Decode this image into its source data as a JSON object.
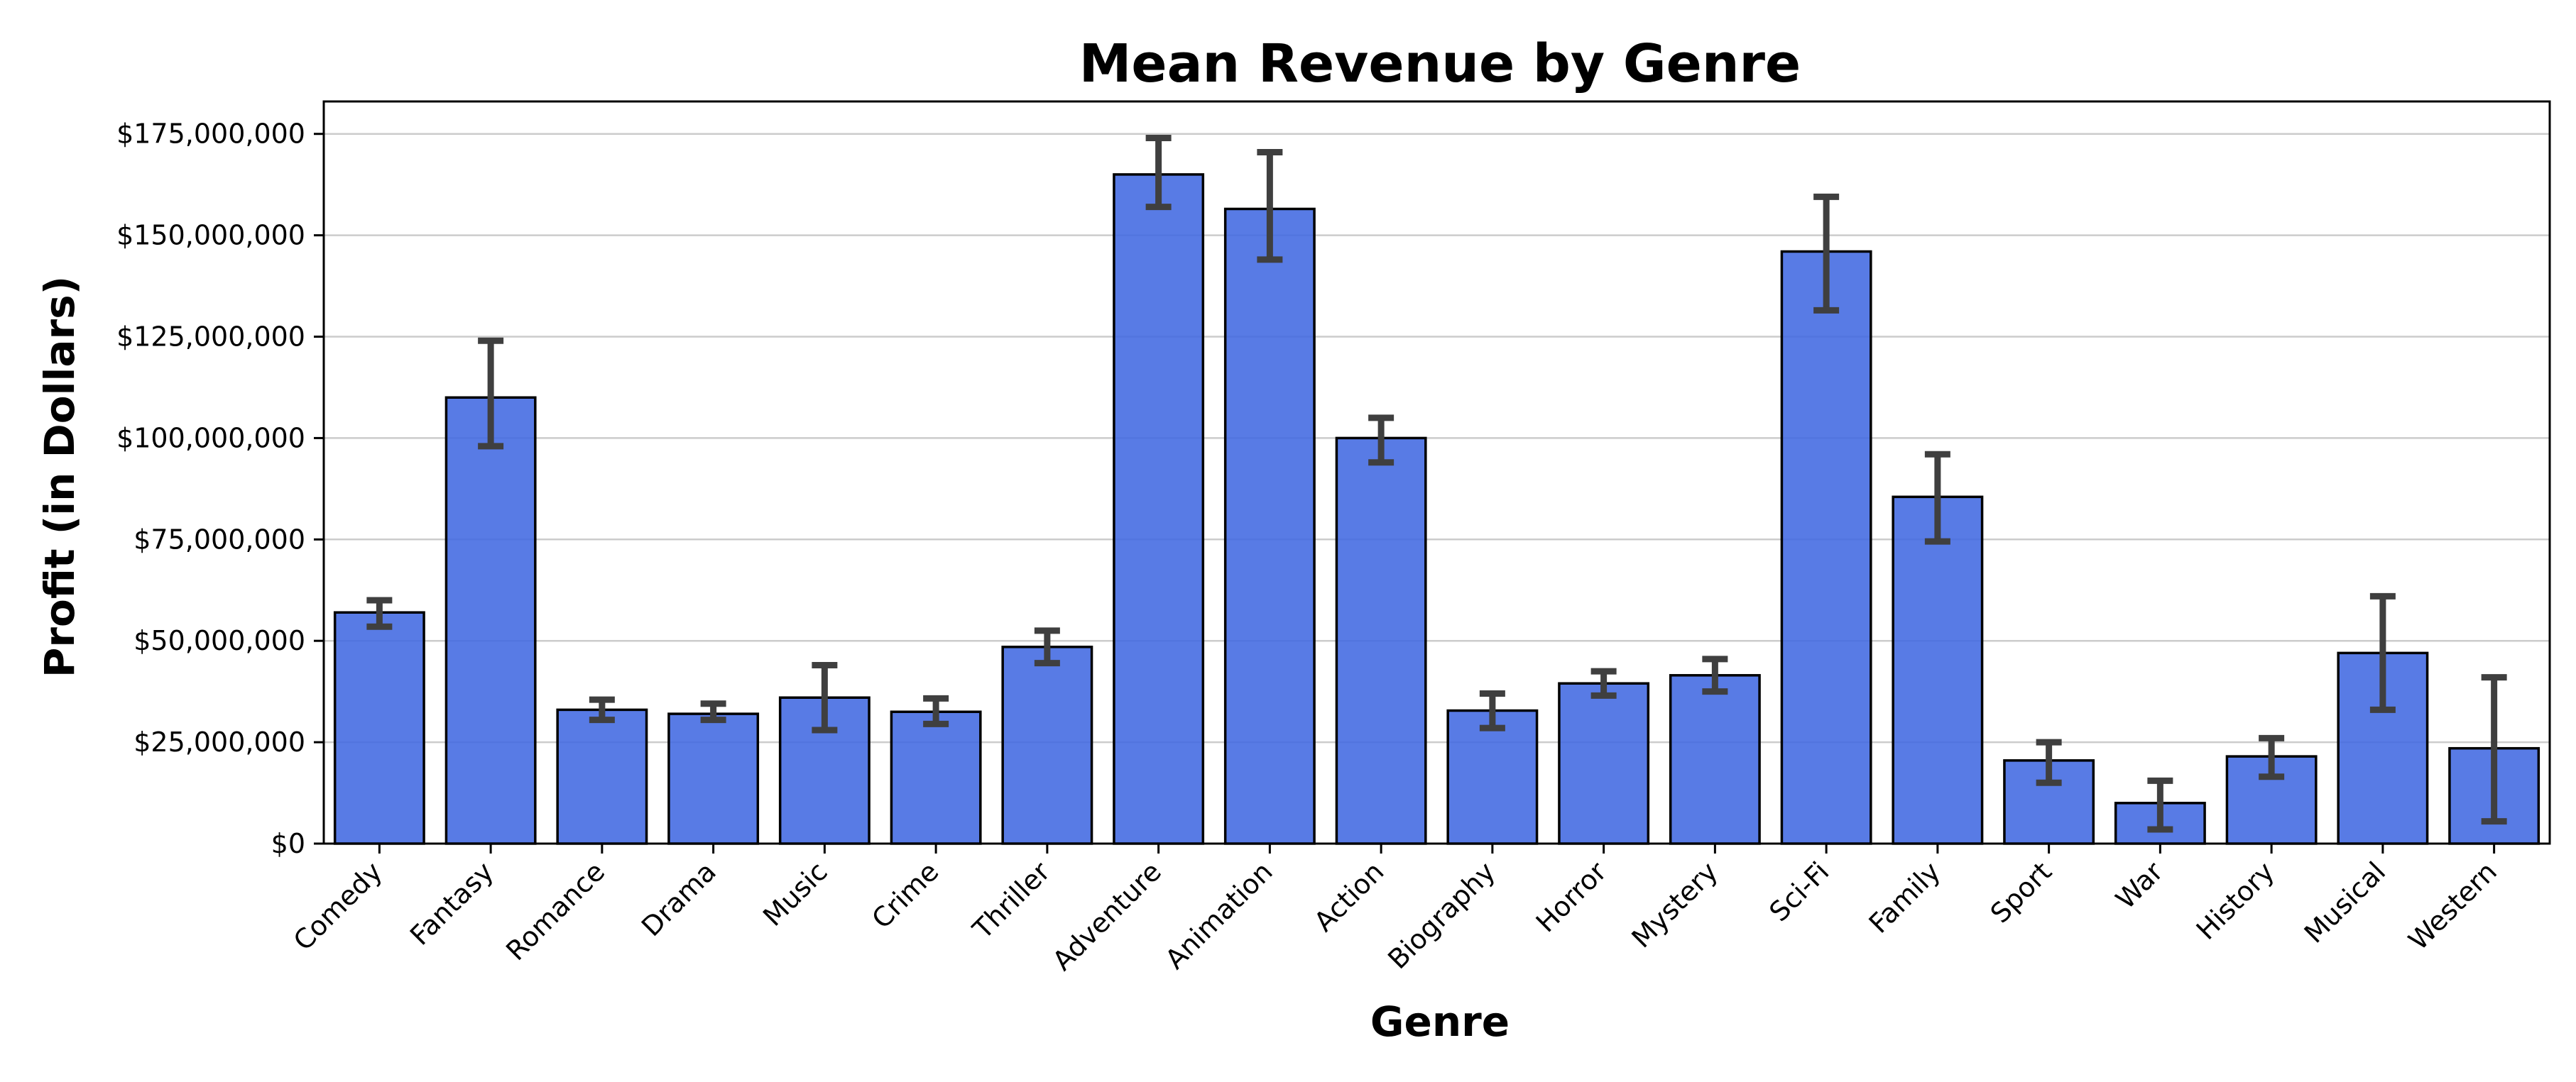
{
  "chart_data": {
    "type": "bar",
    "title": "Mean Revenue by Genre",
    "xlabel": "Genre",
    "ylabel": "Profit (in Dollars)",
    "categories": [
      "Comedy",
      "Fantasy",
      "Romance",
      "Drama",
      "Music",
      "Crime",
      "Thriller",
      "Adventure",
      "Animation",
      "Action",
      "Biography",
      "Horror",
      "Mystery",
      "Sci-Fi",
      "Family",
      "Sport",
      "War",
      "History",
      "Musical",
      "Western"
    ],
    "values": [
      57000000,
      110000000,
      33000000,
      32000000,
      36000000,
      32500000,
      48500000,
      165000000,
      156500000,
      100000000,
      32800000,
      39500000,
      41500000,
      146000000,
      85500000,
      20500000,
      10000000,
      21500000,
      47000000,
      23500000
    ],
    "error_low": [
      53500000,
      98000000,
      30500000,
      30500000,
      28000000,
      29500000,
      44500000,
      157000000,
      144000000,
      94000000,
      28500000,
      36500000,
      37500000,
      131500000,
      74500000,
      15000000,
      3500000,
      16500000,
      33000000,
      5500000
    ],
    "error_high": [
      60000000,
      124000000,
      35500000,
      34500000,
      44000000,
      35800000,
      52500000,
      174000000,
      170500000,
      105000000,
      37000000,
      42500000,
      45500000,
      159500000,
      96000000,
      25000000,
      15500000,
      26000000,
      61000000,
      41000000
    ],
    "ylim": [
      0,
      183000000
    ],
    "yticks": [
      0,
      25000000,
      50000000,
      75000000,
      100000000,
      125000000,
      150000000,
      175000000
    ],
    "ytick_labels": [
      "$0",
      "$25,000,000",
      "$50,000,000",
      "$75,000,000",
      "$100,000,000",
      "$125,000,000",
      "$150,000,000",
      "$175,000,000"
    ],
    "grid": "horizontal",
    "colors": {
      "bar": "#4169e1",
      "error_bar": "#3f3f3f",
      "grid": "#cccccc"
    }
  }
}
